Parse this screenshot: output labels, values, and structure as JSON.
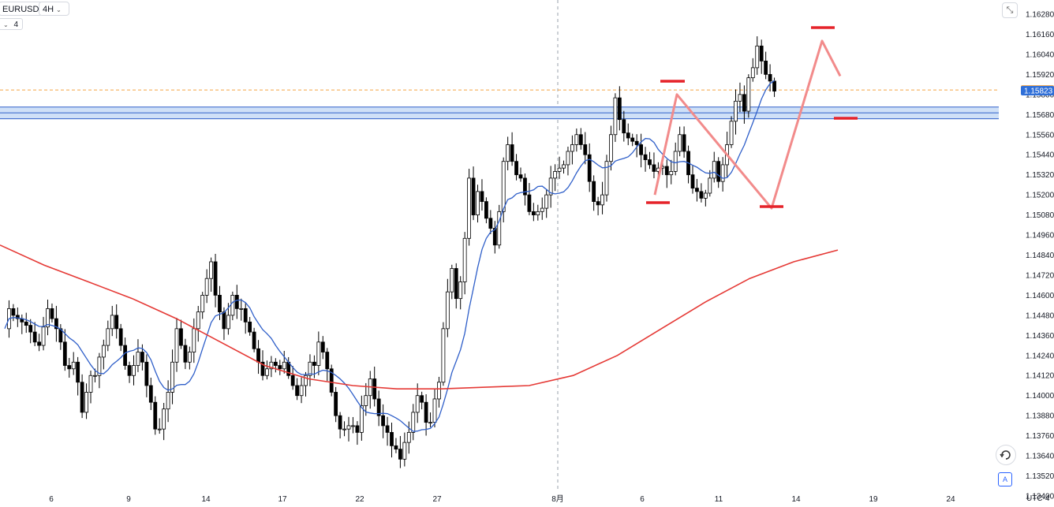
{
  "header": {
    "symbol": "EURUSD",
    "timeframe": "4H",
    "indicator_label": "4",
    "timezone": "UTC-4"
  },
  "icons": {
    "collapse": "collapse-arrows-icon",
    "replay": "replay-icon",
    "auto_scale": "auto-scale-icon"
  },
  "colors": {
    "up_body": "#ffffff",
    "down_body": "#000000",
    "ma_fast": "#2f5fc9",
    "ma_slow": "#e53935",
    "zone": "#2f5fc9",
    "pattern": "#f28b8b",
    "marks": "#e5232a",
    "last_price": "#f5a341",
    "current_price": "#2f6fd8"
  },
  "chart_data": {
    "type": "candlestick",
    "symbol": "EURUSD",
    "interval": "4H",
    "y_ticks": [
      "1.16280",
      "1.16160",
      "1.16040",
      "1.15920",
      "1.15800",
      "1.15680",
      "1.15560",
      "1.15440",
      "1.15320",
      "1.15200",
      "1.15080",
      "1.14960",
      "1.14840",
      "1.14720",
      "1.14600",
      "1.14480",
      "1.14360",
      "1.14240",
      "1.14120",
      "1.14000",
      "1.13880",
      "1.13760",
      "1.13640",
      "1.13520",
      "1.13400"
    ],
    "ylim": [
      1.1332,
      1.1632
    ],
    "x_ticks": [
      "6",
      "9",
      "14",
      "17",
      "22",
      "27",
      "8月",
      "6",
      "11",
      "14",
      "19",
      "24"
    ],
    "price_labels": {
      "last": "1.15827",
      "current": "1.15823"
    },
    "zone": [
      1.15655,
      1.15725
    ],
    "close_path": [
      1.144,
      1.1452,
      1.1448,
      1.1446,
      1.1444,
      1.1442,
      1.1438,
      1.1432,
      1.143,
      1.1441,
      1.1452,
      1.1446,
      1.144,
      1.1432,
      1.1418,
      1.1416,
      1.142,
      1.1408,
      1.139,
      1.1402,
      1.1412,
      1.1412,
      1.1423,
      1.143,
      1.144,
      1.1448,
      1.144,
      1.143,
      1.1418,
      1.1412,
      1.1418,
      1.1426,
      1.142,
      1.1406,
      1.1396,
      1.138,
      1.138,
      1.1392,
      1.1402,
      1.142,
      1.144,
      1.143,
      1.142,
      1.1426,
      1.144,
      1.145,
      1.146,
      1.147,
      1.148,
      1.146,
      1.145,
      1.144,
      1.1448,
      1.146,
      1.1452,
      1.1452,
      1.1444,
      1.1438,
      1.1428,
      1.142,
      1.1412,
      1.1416,
      1.142,
      1.1418,
      1.1416,
      1.142,
      1.1412,
      1.1406,
      1.14,
      1.1406,
      1.1412,
      1.142,
      1.1418,
      1.1432,
      1.1426,
      1.1416,
      1.1402,
      1.1388,
      1.138,
      1.138,
      1.1382,
      1.1382,
      1.1378,
      1.1394,
      1.14,
      1.141,
      1.1398,
      1.1388,
      1.1382,
      1.1378,
      1.137,
      1.1368,
      1.1362,
      1.1372,
      1.1378,
      1.139,
      1.14,
      1.1396,
      1.1384,
      1.1384,
      1.1398,
      1.1408,
      1.144,
      1.1462,
      1.1476,
      1.1458,
      1.1468,
      1.1494,
      1.153,
      1.1508,
      1.1522,
      1.1516,
      1.1506,
      1.15,
      1.149,
      1.151,
      1.154,
      1.155,
      1.154,
      1.1532,
      1.153,
      1.152,
      1.151,
      1.1508,
      1.151,
      1.1512,
      1.152,
      1.153,
      1.1534,
      1.1536,
      1.1538,
      1.1546,
      1.155,
      1.1556,
      1.155,
      1.1544,
      1.1528,
      1.1516,
      1.1514,
      1.152,
      1.154,
      1.1556,
      1.1578,
      1.1565,
      1.1557,
      1.1554,
      1.1552,
      1.155,
      1.1544,
      1.1541,
      1.1538,
      1.1534,
      1.1536,
      1.1537,
      1.1532,
      1.1534,
      1.1546,
      1.1556,
      1.1546,
      1.1532,
      1.1524,
      1.1522,
      1.1518,
      1.1521,
      1.153,
      1.154,
      1.1528,
      1.1538,
      1.155,
      1.1564,
      1.1576,
      1.158,
      1.157,
      1.159,
      1.1596,
      1.1609,
      1.16,
      1.1592,
      1.1588,
      1.1582
    ]
  }
}
